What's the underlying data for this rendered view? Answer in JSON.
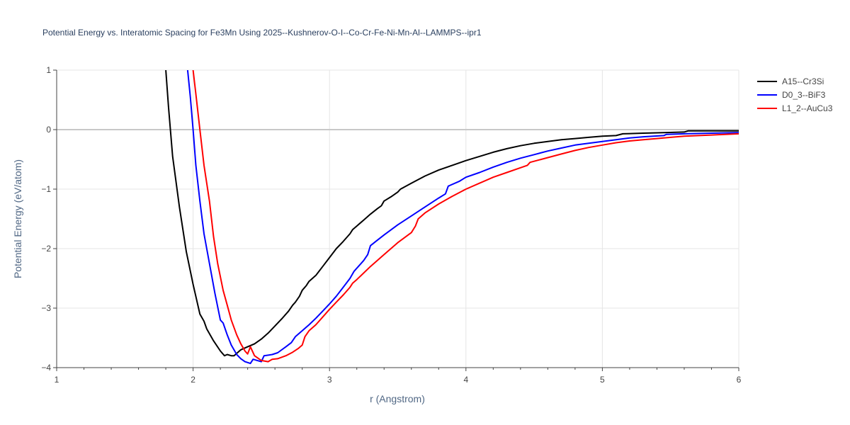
{
  "chart_data": {
    "type": "line",
    "title": "Potential Energy vs. Interatomic Spacing for Fe3Mn Using 2025--Kushnerov-O-I--Co-Cr-Fe-Ni-Mn-Al--LAMMPS--ipr1",
    "xlabel": "r (Angstrom)",
    "ylabel": "Potential Energy (eV/atom)",
    "xlim": [
      1,
      6
    ],
    "ylim": [
      -4,
      1
    ],
    "x_ticks": [
      1,
      2,
      3,
      4,
      5,
      6
    ],
    "y_ticks": [
      1,
      0,
      -1,
      -2,
      -3,
      -4
    ],
    "x_tick_labels": [
      "1",
      "2",
      "3",
      "4",
      "5",
      "6"
    ],
    "y_tick_labels": [
      "1",
      "0",
      "−1",
      "−2",
      "−3",
      "−4"
    ],
    "grid": true,
    "legend_position": "top-right",
    "series": [
      {
        "name": "A15--Cr3Si",
        "color": "#000000",
        "points": [
          [
            1.8,
            1.0
          ],
          [
            1.82,
            0.38
          ],
          [
            1.85,
            -0.45
          ],
          [
            1.9,
            -1.3
          ],
          [
            1.95,
            -2.05
          ],
          [
            2.0,
            -2.6
          ],
          [
            2.05,
            -3.1
          ],
          [
            2.08,
            -3.22
          ],
          [
            2.1,
            -3.35
          ],
          [
            2.15,
            -3.55
          ],
          [
            2.2,
            -3.72
          ],
          [
            2.23,
            -3.8
          ],
          [
            2.25,
            -3.78
          ],
          [
            2.28,
            -3.8
          ],
          [
            2.3,
            -3.8
          ],
          [
            2.35,
            -3.7
          ],
          [
            2.4,
            -3.65
          ],
          [
            2.45,
            -3.6
          ],
          [
            2.5,
            -3.52
          ],
          [
            2.55,
            -3.42
          ],
          [
            2.6,
            -3.3
          ],
          [
            2.65,
            -3.18
          ],
          [
            2.7,
            -3.05
          ],
          [
            2.73,
            -2.95
          ],
          [
            2.75,
            -2.9
          ],
          [
            2.78,
            -2.8
          ],
          [
            2.8,
            -2.7
          ],
          [
            2.83,
            -2.62
          ],
          [
            2.85,
            -2.55
          ],
          [
            2.9,
            -2.45
          ],
          [
            2.95,
            -2.3
          ],
          [
            3.0,
            -2.15
          ],
          [
            3.05,
            -2.0
          ],
          [
            3.1,
            -1.88
          ],
          [
            3.15,
            -1.75
          ],
          [
            3.17,
            -1.68
          ],
          [
            3.2,
            -1.62
          ],
          [
            3.25,
            -1.52
          ],
          [
            3.3,
            -1.42
          ],
          [
            3.35,
            -1.33
          ],
          [
            3.38,
            -1.28
          ],
          [
            3.4,
            -1.2
          ],
          [
            3.45,
            -1.13
          ],
          [
            3.5,
            -1.05
          ],
          [
            3.52,
            -1.0
          ],
          [
            3.6,
            -0.9
          ],
          [
            3.7,
            -0.78
          ],
          [
            3.8,
            -0.68
          ],
          [
            3.9,
            -0.6
          ],
          [
            4.0,
            -0.52
          ],
          [
            4.1,
            -0.45
          ],
          [
            4.2,
            -0.38
          ],
          [
            4.3,
            -0.32
          ],
          [
            4.4,
            -0.27
          ],
          [
            4.5,
            -0.23
          ],
          [
            4.6,
            -0.2
          ],
          [
            4.7,
            -0.17
          ],
          [
            4.8,
            -0.15
          ],
          [
            4.9,
            -0.13
          ],
          [
            5.0,
            -0.11
          ],
          [
            5.1,
            -0.1
          ],
          [
            5.15,
            -0.07
          ],
          [
            5.3,
            -0.06
          ],
          [
            5.45,
            -0.05
          ],
          [
            5.6,
            -0.04
          ],
          [
            5.63,
            -0.02
          ],
          [
            5.8,
            -0.02
          ],
          [
            6.0,
            -0.02
          ]
        ]
      },
      {
        "name": "D0_3--BiF3",
        "color": "#0000ff",
        "points": [
          [
            1.96,
            1.0
          ],
          [
            1.98,
            0.55
          ],
          [
            2.0,
            0.0
          ],
          [
            2.02,
            -0.6
          ],
          [
            2.05,
            -1.2
          ],
          [
            2.08,
            -1.75
          ],
          [
            2.12,
            -2.25
          ],
          [
            2.16,
            -2.75
          ],
          [
            2.2,
            -3.2
          ],
          [
            2.22,
            -3.25
          ],
          [
            2.25,
            -3.45
          ],
          [
            2.28,
            -3.62
          ],
          [
            2.32,
            -3.78
          ],
          [
            2.35,
            -3.85
          ],
          [
            2.38,
            -3.9
          ],
          [
            2.42,
            -3.93
          ],
          [
            2.44,
            -3.86
          ],
          [
            2.47,
            -3.88
          ],
          [
            2.5,
            -3.9
          ],
          [
            2.52,
            -3.8
          ],
          [
            2.58,
            -3.78
          ],
          [
            2.62,
            -3.75
          ],
          [
            2.68,
            -3.65
          ],
          [
            2.72,
            -3.58
          ],
          [
            2.75,
            -3.48
          ],
          [
            2.8,
            -3.38
          ],
          [
            2.85,
            -3.28
          ],
          [
            2.9,
            -3.17
          ],
          [
            2.95,
            -3.05
          ],
          [
            3.0,
            -2.93
          ],
          [
            3.05,
            -2.8
          ],
          [
            3.1,
            -2.65
          ],
          [
            3.15,
            -2.5
          ],
          [
            3.18,
            -2.38
          ],
          [
            3.2,
            -2.33
          ],
          [
            3.25,
            -2.2
          ],
          [
            3.28,
            -2.1
          ],
          [
            3.3,
            -1.95
          ],
          [
            3.35,
            -1.86
          ],
          [
            3.4,
            -1.77
          ],
          [
            3.5,
            -1.6
          ],
          [
            3.6,
            -1.45
          ],
          [
            3.7,
            -1.3
          ],
          [
            3.8,
            -1.15
          ],
          [
            3.85,
            -1.08
          ],
          [
            3.87,
            -0.95
          ],
          [
            3.95,
            -0.87
          ],
          [
            4.0,
            -0.8
          ],
          [
            4.1,
            -0.72
          ],
          [
            4.2,
            -0.63
          ],
          [
            4.3,
            -0.55
          ],
          [
            4.4,
            -0.48
          ],
          [
            4.5,
            -0.42
          ],
          [
            4.6,
            -0.36
          ],
          [
            4.7,
            -0.31
          ],
          [
            4.8,
            -0.26
          ],
          [
            4.9,
            -0.23
          ],
          [
            5.0,
            -0.2
          ],
          [
            5.1,
            -0.17
          ],
          [
            5.2,
            -0.14
          ],
          [
            5.3,
            -0.12
          ],
          [
            5.45,
            -0.1
          ],
          [
            5.47,
            -0.08
          ],
          [
            5.6,
            -0.07
          ],
          [
            5.8,
            -0.06
          ],
          [
            6.0,
            -0.05
          ]
        ]
      },
      {
        "name": "L1_2--AuCu3",
        "color": "#ff0000",
        "points": [
          [
            2.0,
            1.0
          ],
          [
            2.02,
            0.6
          ],
          [
            2.05,
            0.0
          ],
          [
            2.08,
            -0.6
          ],
          [
            2.12,
            -1.2
          ],
          [
            2.15,
            -1.8
          ],
          [
            2.18,
            -2.25
          ],
          [
            2.22,
            -2.7
          ],
          [
            2.25,
            -2.95
          ],
          [
            2.28,
            -3.2
          ],
          [
            2.32,
            -3.45
          ],
          [
            2.35,
            -3.6
          ],
          [
            2.38,
            -3.72
          ],
          [
            2.4,
            -3.77
          ],
          [
            2.42,
            -3.65
          ],
          [
            2.45,
            -3.8
          ],
          [
            2.5,
            -3.88
          ],
          [
            2.55,
            -3.9
          ],
          [
            2.58,
            -3.86
          ],
          [
            2.62,
            -3.85
          ],
          [
            2.68,
            -3.8
          ],
          [
            2.73,
            -3.74
          ],
          [
            2.77,
            -3.68
          ],
          [
            2.8,
            -3.62
          ],
          [
            2.82,
            -3.48
          ],
          [
            2.85,
            -3.38
          ],
          [
            2.9,
            -3.28
          ],
          [
            2.95,
            -3.15
          ],
          [
            3.0,
            -3.02
          ],
          [
            3.05,
            -2.9
          ],
          [
            3.1,
            -2.78
          ],
          [
            3.15,
            -2.65
          ],
          [
            3.17,
            -2.58
          ],
          [
            3.2,
            -2.52
          ],
          [
            3.3,
            -2.3
          ],
          [
            3.4,
            -2.1
          ],
          [
            3.5,
            -1.9
          ],
          [
            3.6,
            -1.73
          ],
          [
            3.63,
            -1.62
          ],
          [
            3.65,
            -1.5
          ],
          [
            3.7,
            -1.4
          ],
          [
            3.8,
            -1.25
          ],
          [
            3.9,
            -1.12
          ],
          [
            4.0,
            -1.0
          ],
          [
            4.1,
            -0.9
          ],
          [
            4.2,
            -0.8
          ],
          [
            4.3,
            -0.72
          ],
          [
            4.4,
            -0.64
          ],
          [
            4.45,
            -0.6
          ],
          [
            4.47,
            -0.55
          ],
          [
            4.6,
            -0.47
          ],
          [
            4.7,
            -0.41
          ],
          [
            4.8,
            -0.35
          ],
          [
            4.9,
            -0.3
          ],
          [
            5.0,
            -0.26
          ],
          [
            5.1,
            -0.22
          ],
          [
            5.2,
            -0.19
          ],
          [
            5.3,
            -0.17
          ],
          [
            5.4,
            -0.15
          ],
          [
            5.5,
            -0.13
          ],
          [
            5.6,
            -0.11
          ],
          [
            5.8,
            -0.09
          ],
          [
            6.0,
            -0.07
          ]
        ]
      }
    ]
  }
}
